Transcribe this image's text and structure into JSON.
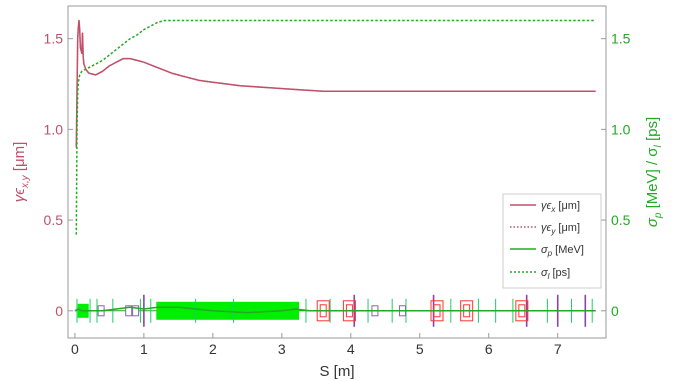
{
  "chart_data": {
    "type": "line",
    "xlabel": "S [m]",
    "ylabel_left": "γϵx,y [μm]",
    "ylabel_right": "σp [MeV] / σl [ps]",
    "xlim": [
      -0.1,
      7.7
    ],
    "ylim_left": [
      -0.15,
      1.68
    ],
    "ylim_right": [
      -0.15,
      1.68
    ],
    "x_ticks": [
      0,
      1,
      2,
      3,
      4,
      5,
      6,
      7
    ],
    "y_ticks_left": [
      0,
      0.5,
      1.0,
      1.5
    ],
    "y_ticks_right": [
      0,
      0.5,
      1.0,
      1.5
    ],
    "y_tick_labels_left": [
      "0",
      "0.5",
      "1.0",
      "1.5"
    ],
    "y_tick_labels_right": [
      "0",
      "0.5",
      "1.0",
      "1.5"
    ],
    "legend_position": "right",
    "series": [
      {
        "name": "γϵx [μm]",
        "axis": "left",
        "color": "#c0506a",
        "style": "solid",
        "x": [
          0.02,
          0.04,
          0.05,
          0.06,
          0.07,
          0.08,
          0.1,
          0.11,
          0.12,
          0.13,
          0.16,
          0.2,
          0.3,
          0.4,
          0.5,
          0.6,
          0.7,
          0.8,
          0.9,
          1.0,
          1.2,
          1.4,
          1.6,
          1.8,
          2.0,
          2.4,
          2.8,
          3.2,
          3.6,
          4.0,
          4.5,
          5.0,
          5.5,
          6.0,
          6.5,
          7.0,
          7.55
        ],
        "y": [
          0.9,
          1.5,
          1.56,
          1.6,
          1.55,
          1.45,
          1.42,
          1.53,
          1.4,
          1.36,
          1.33,
          1.31,
          1.3,
          1.32,
          1.35,
          1.37,
          1.39,
          1.39,
          1.38,
          1.37,
          1.34,
          1.31,
          1.29,
          1.27,
          1.26,
          1.24,
          1.23,
          1.22,
          1.21,
          1.21,
          1.21,
          1.21,
          1.21,
          1.21,
          1.21,
          1.21,
          1.21
        ]
      },
      {
        "name": "γϵy [μm]",
        "axis": "left",
        "color": "#c0506a",
        "style": "dotted",
        "x": [
          0.02,
          0.04,
          0.05,
          0.06,
          0.07,
          0.08,
          0.1,
          0.11,
          0.12,
          0.13,
          0.16,
          0.2,
          0.3,
          0.4,
          0.5,
          0.6,
          0.7,
          0.8,
          0.9,
          1.0,
          1.2,
          1.4,
          1.6,
          1.8,
          2.0,
          2.4,
          2.8,
          3.2,
          3.6,
          4.0,
          4.5,
          5.0,
          5.5,
          6.0,
          6.5,
          7.0,
          7.55
        ],
        "y": [
          0.9,
          1.5,
          1.56,
          1.6,
          1.55,
          1.45,
          1.42,
          1.53,
          1.4,
          1.36,
          1.33,
          1.31,
          1.3,
          1.32,
          1.35,
          1.37,
          1.39,
          1.39,
          1.38,
          1.37,
          1.34,
          1.31,
          1.29,
          1.27,
          1.26,
          1.24,
          1.23,
          1.22,
          1.21,
          1.21,
          1.21,
          1.21,
          1.21,
          1.21,
          1.21,
          1.21,
          1.21
        ]
      },
      {
        "name": "σp [MeV]",
        "axis": "right",
        "color": "#22aa22",
        "style": "solid",
        "x": [
          0.0,
          0.05,
          0.1,
          0.15,
          0.2,
          0.4,
          0.6,
          0.8,
          1.0,
          1.2,
          1.5,
          2.0,
          2.5,
          3.0,
          3.2,
          3.4,
          4.0,
          5.0,
          6.0,
          7.0,
          7.55
        ],
        "y": [
          0.0,
          0.01,
          0.0,
          0.0,
          0.0,
          0.0,
          0.01,
          0.02,
          0.01,
          0.02,
          0.02,
          0.0,
          -0.01,
          0.0,
          0.01,
          0.0,
          0.0,
          0.0,
          0.0,
          0.0,
          0.0
        ]
      },
      {
        "name": "σl [ps]",
        "axis": "right",
        "color": "#22aa22",
        "style": "dotted",
        "x": [
          0.02,
          0.03,
          0.04,
          0.05,
          0.07,
          0.1,
          0.15,
          0.2,
          0.3,
          0.4,
          0.5,
          0.6,
          0.7,
          0.8,
          0.9,
          1.0,
          1.1,
          1.2,
          1.3,
          1.5,
          1.8,
          2.2,
          3.0,
          4.0,
          5.0,
          6.0,
          7.0,
          7.55
        ],
        "y": [
          0.42,
          1.0,
          1.2,
          1.26,
          1.3,
          1.32,
          1.33,
          1.34,
          1.36,
          1.38,
          1.41,
          1.44,
          1.47,
          1.5,
          1.52,
          1.55,
          1.57,
          1.59,
          1.6,
          1.6,
          1.6,
          1.6,
          1.6,
          1.6,
          1.6,
          1.6,
          1.6,
          1.6
        ]
      }
    ]
  },
  "labels": {
    "x_axis": "S [m]",
    "y_left_prefix": "γϵ",
    "y_left_sub": "x,y",
    "y_left_suffix": " [μm]",
    "y_right_a": "σ",
    "y_right_a_sub": "p",
    "y_right_mid": " [MeV] / σ",
    "y_right_b_sub": "l",
    "y_right_suffix": " [ps]"
  },
  "legend": {
    "ex_sym": "γϵ",
    "ex_sub": "x",
    "ex_unit": " [μm]",
    "ey_sym": "γϵ",
    "ey_sub": "y",
    "ey_unit": " [μm]",
    "sp_sym": "σ",
    "sp_sub": "p",
    "sp_unit": " [MeV]",
    "sl_sym": "σ",
    "sl_sub": "l",
    "sl_unit": " [ps]"
  },
  "colors": {
    "emittance": "#c0506a",
    "sigma": "#22aa22",
    "lattice_fill": "#00ee00",
    "quad": "#ff3333",
    "dipole": "#8844aa"
  }
}
